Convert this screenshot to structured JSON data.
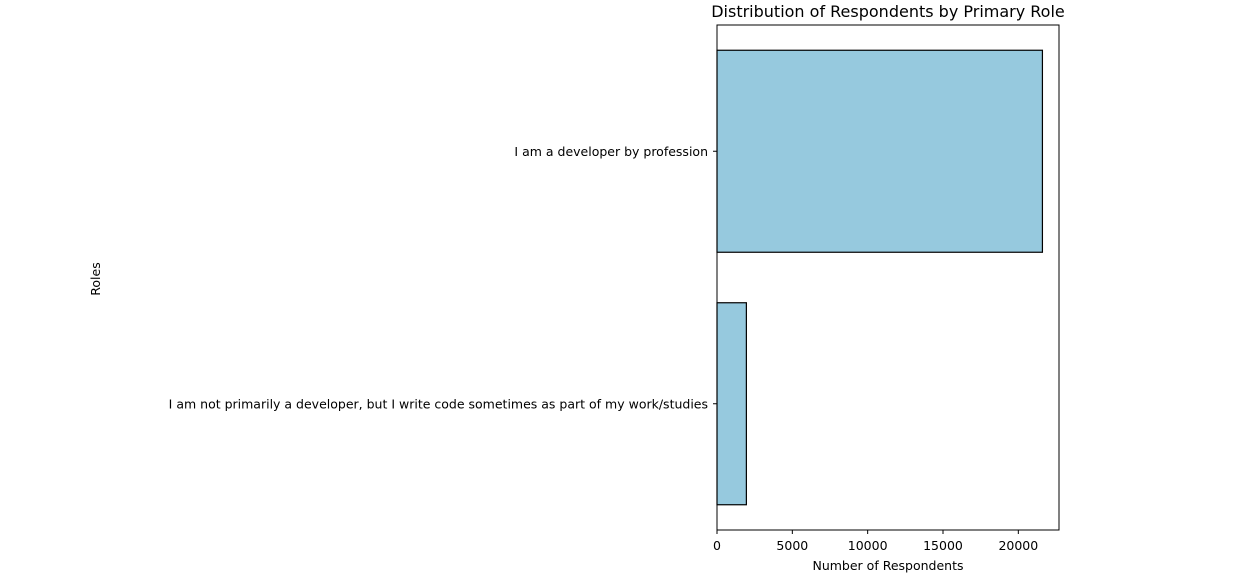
{
  "chart_data": {
    "type": "bar",
    "orientation": "horizontal",
    "title": "Distribution of Respondents by Primary Role",
    "xlabel": "Number of Respondents",
    "ylabel": "Roles",
    "categories": [
      "I am a developer by profession",
      "I am not primarily a developer, but I write code sometimes as part of my work/studies"
    ],
    "values": [
      21600,
      1950
    ],
    "xlim": [
      0,
      22700
    ],
    "xticks": [
      0,
      5000,
      10000,
      15000,
      20000
    ],
    "grid": false,
    "bar_color": "#96c9de",
    "edge_color": "#000000"
  }
}
